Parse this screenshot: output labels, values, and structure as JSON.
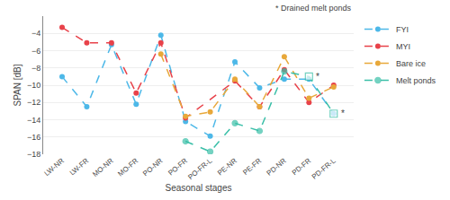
{
  "chart_data": {
    "type": "line",
    "categories": [
      "LW-NR",
      "LW-FR",
      "MO-NR",
      "MO-FR",
      "PO-NR",
      "PO-FR",
      "PO-FR-L",
      "PE-NR",
      "PE-FR",
      "PD-NR",
      "PD-FR",
      "PD-FR-L"
    ],
    "series": [
      {
        "name": "FYI",
        "color": "#4db8e8",
        "marker": "circle",
        "line_style": "dashed",
        "values": [
          -9.0,
          -12.5,
          -5.3,
          -12.2,
          -4.2,
          -14.2,
          -15.9,
          -7.3,
          -10.3,
          -9.3,
          -9.3,
          -13.3
        ]
      },
      {
        "name": "MYI",
        "color": "#e8424a",
        "marker": "circle",
        "line_style": "dashed",
        "values": [
          -3.3,
          -5.1,
          -5.1,
          -10.9,
          -5.1,
          -13.8,
          null,
          -9.5,
          -12.5,
          -8.2,
          -12.0,
          -10.0
        ]
      },
      {
        "name": "Bare ice",
        "color": "#e8a83a",
        "marker": "circle",
        "line_style": "dashed",
        "values": [
          null,
          null,
          null,
          null,
          -6.4,
          -13.6,
          -13.1,
          -9.3,
          -12.5,
          -6.7,
          -11.5,
          -10.2
        ]
      },
      {
        "name": "Melt ponds",
        "color": "#3abfa8",
        "marker": [
          null,
          null,
          null,
          null,
          null,
          "circle",
          "circle",
          "circle",
          "circle",
          "circle",
          "square",
          "square"
        ],
        "line_style": "dashed",
        "values": [
          null,
          null,
          null,
          null,
          null,
          -16.5,
          -17.7,
          -14.4,
          -15.3,
          -8.4,
          -9.0,
          -13.3
        ]
      }
    ],
    "annotations": [
      {
        "text": "*",
        "category": "PD-FR",
        "series": "Melt ponds"
      },
      {
        "text": "*",
        "category": "PD-FR-L",
        "series": "Melt ponds"
      },
      {
        "text": "* Drained melt ponds"
      }
    ],
    "xlabel": "Seasonal stages",
    "ylabel": "SPAN [dB]",
    "ylim": [
      -18,
      -2
    ],
    "yticks": [
      {
        "value": -18,
        "label": "−18"
      },
      {
        "value": -16,
        "label": "−16"
      },
      {
        "value": -14,
        "label": "−14"
      },
      {
        "value": -12,
        "label": "−12"
      },
      {
        "value": -10,
        "label": "−10"
      },
      {
        "value": -8,
        "label": "−8"
      },
      {
        "value": -6,
        "label": "−6"
      },
      {
        "value": -4,
        "label": "−4"
      }
    ],
    "grid": true,
    "legend": "upper right"
  }
}
